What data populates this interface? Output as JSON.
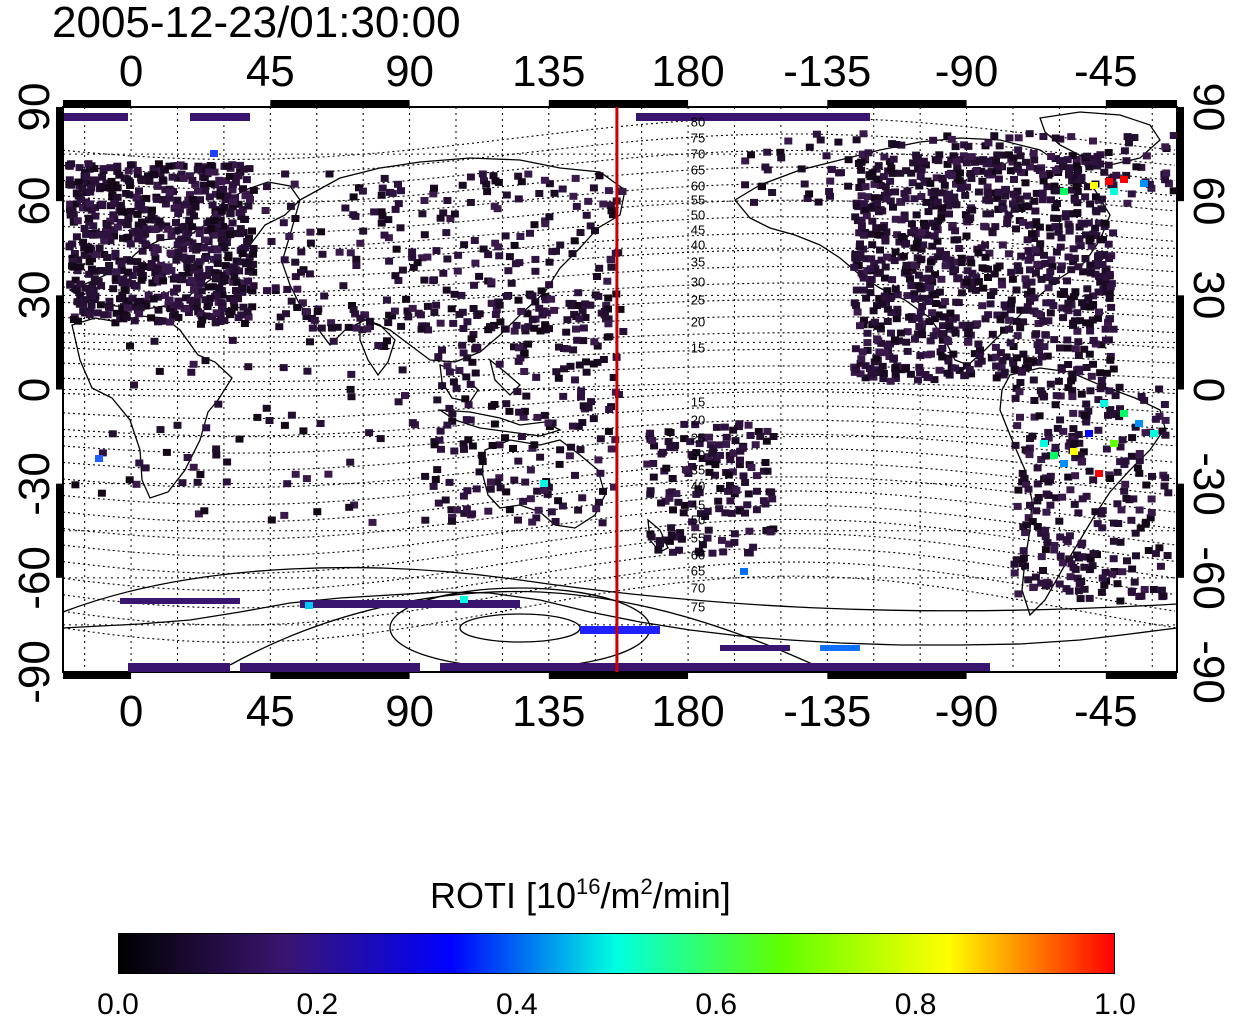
{
  "title": "2005-12-23/01:30:00",
  "map": {
    "top_lon_labels": [
      "0",
      "45",
      "90",
      "135",
      "180",
      "-135",
      "-90",
      "-45"
    ],
    "bottom_lon_labels": [
      "0",
      "45",
      "90",
      "135",
      "180",
      "-135",
      "-90",
      "-45"
    ],
    "left_lat_labels": [
      "90",
      "60",
      "30",
      "0",
      "-30",
      "-60",
      "-90"
    ],
    "right_lat_labels": [
      "90",
      "60",
      "30",
      "0",
      "-30",
      "-60",
      "-90"
    ],
    "contour_labels": [
      "80",
      "75",
      "70",
      "65",
      "60",
      "55",
      "50",
      "45",
      "40",
      "35",
      "30",
      "25",
      "20",
      "15",
      "15",
      "20",
      "25",
      "30",
      "35",
      "40",
      "45",
      "50",
      "55",
      "60",
      "65",
      "70",
      "75"
    ],
    "terminator_lon": 157,
    "terminator_color": "#cc0000"
  },
  "colorbar": {
    "title_main": "ROTI  [10",
    "title_sup1": "16",
    "title_mid": "/m",
    "title_sup2": "2",
    "title_end": "/min]",
    "min": 0.0,
    "max": 1.0,
    "ticks": [
      "0.0",
      "0.2",
      "0.4",
      "0.6",
      "0.8",
      "1.0"
    ],
    "colors": [
      "#000000",
      "#3a1570",
      "#0000ff",
      "#00ffe0",
      "#60ff00",
      "#ffff00",
      "#ff0000"
    ]
  }
}
